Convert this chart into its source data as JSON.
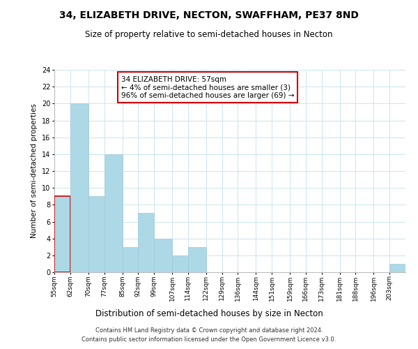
{
  "title": "34, ELIZABETH DRIVE, NECTON, SWAFFHAM, PE37 8ND",
  "subtitle": "Size of property relative to semi-detached houses in Necton",
  "xlabel": "Distribution of semi-detached houses by size in Necton",
  "ylabel": "Number of semi-detached properties",
  "bin_labels": [
    "55sqm",
    "62sqm",
    "70sqm",
    "77sqm",
    "85sqm",
    "92sqm",
    "99sqm",
    "107sqm",
    "114sqm",
    "122sqm",
    "129sqm",
    "136sqm",
    "144sqm",
    "151sqm",
    "159sqm",
    "166sqm",
    "173sqm",
    "181sqm",
    "188sqm",
    "196sqm",
    "203sqm"
  ],
  "bin_edges": [
    55,
    62,
    70,
    77,
    85,
    92,
    99,
    107,
    114,
    122,
    129,
    136,
    144,
    151,
    159,
    166,
    173,
    181,
    188,
    196,
    203
  ],
  "counts": [
    9,
    20,
    9,
    14,
    3,
    7,
    4,
    2,
    3,
    0,
    0,
    0,
    0,
    0,
    0,
    0,
    0,
    0,
    0,
    0,
    1
  ],
  "bar_color": "#add8e6",
  "highlight_edge_color": "#cc0000",
  "annotation_title": "34 ELIZABETH DRIVE: 57sqm",
  "annotation_line1": "← 4% of semi-detached houses are smaller (3)",
  "annotation_line2": "96% of semi-detached houses are larger (69) →",
  "ylim": [
    0,
    24
  ],
  "yticks": [
    0,
    2,
    4,
    6,
    8,
    10,
    12,
    14,
    16,
    18,
    20,
    22,
    24
  ],
  "footer_line1": "Contains HM Land Registry data © Crown copyright and database right 2024.",
  "footer_line2": "Contains public sector information licensed under the Open Government Licence v3.0."
}
